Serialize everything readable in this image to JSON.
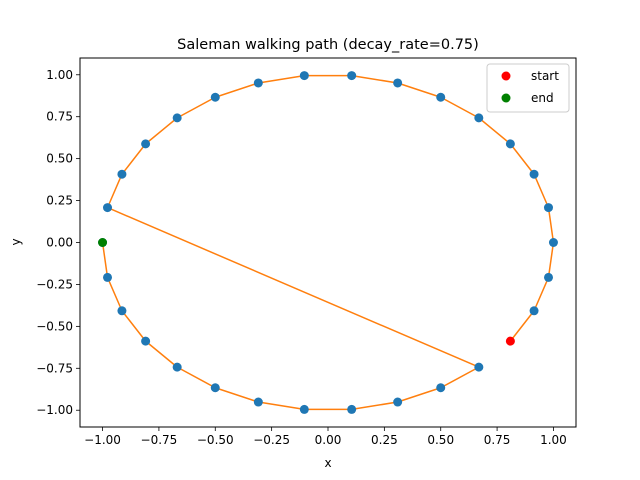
{
  "chart_data": {
    "type": "line",
    "title": "Saleman walking path (decay_rate=0.75)",
    "xlabel": "x",
    "ylabel": "y",
    "xlim": [
      -1.1,
      1.1
    ],
    "ylim": [
      -1.1,
      1.1
    ],
    "xticks": [
      -1.0,
      -0.75,
      -0.5,
      -0.25,
      0.0,
      0.25,
      0.5,
      0.75,
      1.0
    ],
    "yticks": [
      -1.0,
      -0.75,
      -0.5,
      -0.25,
      0.0,
      0.25,
      0.5,
      0.75,
      1.0
    ],
    "xtick_labels": [
      "−1.00",
      "−0.75",
      "−0.50",
      "−0.25",
      "0.00",
      "0.25",
      "0.50",
      "0.75",
      "1.00"
    ],
    "ytick_labels": [
      "−1.00",
      "−0.75",
      "−0.50",
      "−0.25",
      "0.00",
      "0.25",
      "0.50",
      "0.75",
      "1.00"
    ],
    "grid": false,
    "legend_position": "top-right",
    "colors": {
      "cities": "#1f77b4",
      "path": "#ff7f0e",
      "start": "#ff0000",
      "end": "#008000"
    },
    "cities": {
      "x": [
        1.0,
        0.978,
        0.914,
        0.809,
        0.669,
        0.5,
        0.309,
        0.105,
        -0.105,
        -0.309,
        -0.5,
        -0.669,
        -0.809,
        -0.914,
        -0.978,
        -1.0,
        -0.978,
        -0.914,
        -0.809,
        -0.669,
        -0.5,
        -0.309,
        -0.105,
        0.105,
        0.309,
        0.5,
        0.669,
        0.914,
        0.978
      ],
      "y": [
        0.0,
        0.208,
        0.407,
        0.588,
        0.743,
        0.866,
        0.951,
        0.995,
        0.995,
        0.951,
        0.866,
        0.743,
        0.588,
        0.407,
        0.208,
        0.0,
        -0.208,
        -0.407,
        -0.588,
        -0.743,
        -0.866,
        -0.951,
        -0.995,
        -0.995,
        -0.951,
        -0.866,
        -0.743,
        -0.407,
        -0.208
      ]
    },
    "path": {
      "x": [
        0.809,
        0.914,
        0.978,
        1.0,
        0.978,
        0.914,
        0.809,
        0.669,
        0.5,
        0.309,
        0.105,
        -0.105,
        -0.309,
        -0.5,
        -0.669,
        -0.809,
        -0.914,
        -0.978,
        0.669,
        0.5,
        0.309,
        0.105,
        -0.105,
        -0.309,
        -0.5,
        -0.669,
        -0.809,
        -0.914,
        -0.978,
        -1.0
      ],
      "y": [
        -0.588,
        -0.407,
        -0.208,
        0.0,
        0.208,
        0.407,
        0.588,
        0.743,
        0.866,
        0.951,
        0.995,
        0.995,
        0.951,
        0.866,
        0.743,
        0.588,
        0.407,
        0.208,
        -0.743,
        -0.866,
        -0.951,
        -0.995,
        -0.995,
        -0.951,
        -0.866,
        -0.743,
        -0.588,
        -0.407,
        -0.208,
        0.0
      ]
    },
    "start": {
      "x": 0.809,
      "y": -0.588
    },
    "end": {
      "x": -1.0,
      "y": 0.0
    },
    "legend": [
      {
        "label": "start",
        "color": "#ff0000"
      },
      {
        "label": "end",
        "color": "#008000"
      }
    ]
  }
}
